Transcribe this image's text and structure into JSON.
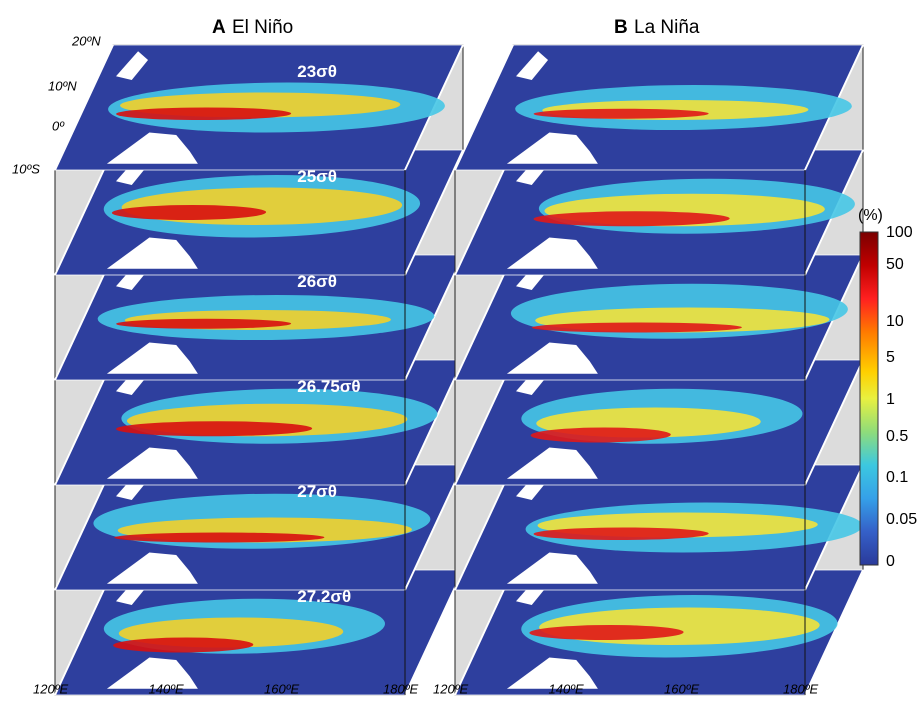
{
  "panels": [
    {
      "letter": "A",
      "title": "El Niño",
      "layers": [
        "23σθ",
        "25σθ",
        "26σθ",
        "26.75σθ",
        "27σθ",
        "27.2σθ"
      ]
    },
    {
      "letter": "B",
      "title": "La Niña"
    }
  ],
  "latitude_labels": [
    "20ºN",
    "10ºN",
    "0º",
    "10ºS"
  ],
  "longitude_labels": [
    "120ºE",
    "140ºE",
    "160ºE",
    "180ºE"
  ],
  "colorbar": {
    "unit": "(%)",
    "ticks": [
      "100",
      "50",
      "10",
      "5",
      "1",
      "0.5",
      "0.1",
      "0.05",
      "0"
    ]
  }
}
